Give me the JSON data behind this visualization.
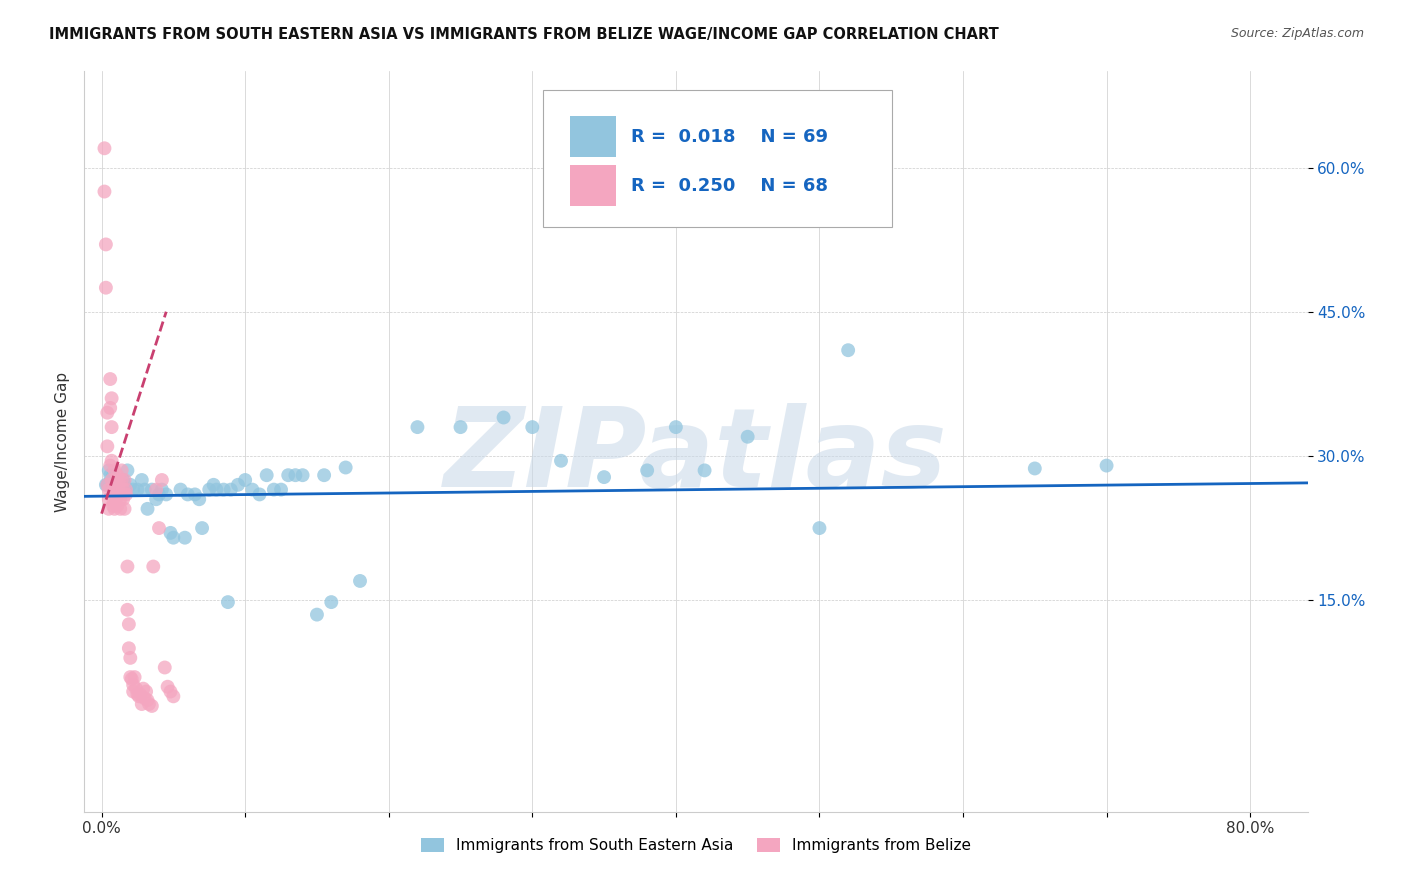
{
  "title": "IMMIGRANTS FROM SOUTH EASTERN ASIA VS IMMIGRANTS FROM BELIZE WAGE/INCOME GAP CORRELATION CHART",
  "source": "Source: ZipAtlas.com",
  "ylabel": "Wage/Income Gap",
  "legend_label1": "Immigrants from South Eastern Asia",
  "legend_label2": "Immigrants from Belize",
  "R1": 0.018,
  "N1": 69,
  "R2": 0.25,
  "N2": 68,
  "color_blue": "#92c5de",
  "color_pink": "#f4a6c0",
  "trendline_blue": "#1565c0",
  "trendline_pink": "#c94070",
  "watermark": "ZIPatlas",
  "x_ticks": [
    0.0,
    0.1,
    0.2,
    0.3,
    0.4,
    0.5,
    0.6,
    0.7,
    0.8
  ],
  "x_tick_labels": [
    "0.0%",
    "",
    "",
    "",
    "",
    "",
    "",
    "",
    "80.0%"
  ],
  "y_ticks": [
    0.15,
    0.3,
    0.45,
    0.6
  ],
  "y_tick_labels": [
    "15.0%",
    "30.0%",
    "45.0%",
    "60.0%"
  ],
  "xlim": [
    -0.012,
    0.84
  ],
  "ylim": [
    -0.07,
    0.7
  ],
  "blue_trend_x": [
    -0.012,
    0.84
  ],
  "blue_trend_y": [
    0.258,
    0.272
  ],
  "pink_trend_x": [
    0.0,
    0.045
  ],
  "pink_trend_y": [
    0.24,
    0.45
  ],
  "blue_x": [
    0.003,
    0.004,
    0.005,
    0.006,
    0.007,
    0.008,
    0.009,
    0.01,
    0.011,
    0.012,
    0.013,
    0.014,
    0.015,
    0.016,
    0.018,
    0.02,
    0.022,
    0.025,
    0.028,
    0.03,
    0.032,
    0.035,
    0.038,
    0.04,
    0.042,
    0.045,
    0.048,
    0.05,
    0.055,
    0.058,
    0.06,
    0.065,
    0.068,
    0.07,
    0.075,
    0.078,
    0.08,
    0.085,
    0.088,
    0.09,
    0.095,
    0.1,
    0.105,
    0.11,
    0.115,
    0.12,
    0.125,
    0.13,
    0.135,
    0.14,
    0.15,
    0.155,
    0.16,
    0.17,
    0.18,
    0.22,
    0.25,
    0.28,
    0.3,
    0.32,
    0.35,
    0.38,
    0.4,
    0.42,
    0.45,
    0.5,
    0.52,
    0.65,
    0.7
  ],
  "blue_y": [
    0.27,
    0.27,
    0.285,
    0.28,
    0.275,
    0.28,
    0.265,
    0.27,
    0.275,
    0.265,
    0.27,
    0.265,
    0.275,
    0.27,
    0.285,
    0.27,
    0.265,
    0.265,
    0.275,
    0.265,
    0.245,
    0.265,
    0.255,
    0.26,
    0.265,
    0.26,
    0.22,
    0.215,
    0.265,
    0.215,
    0.26,
    0.26,
    0.255,
    0.225,
    0.265,
    0.27,
    0.265,
    0.265,
    0.148,
    0.265,
    0.27,
    0.275,
    0.265,
    0.26,
    0.28,
    0.265,
    0.265,
    0.28,
    0.28,
    0.28,
    0.135,
    0.28,
    0.148,
    0.288,
    0.17,
    0.33,
    0.33,
    0.34,
    0.33,
    0.295,
    0.278,
    0.285,
    0.33,
    0.285,
    0.32,
    0.225,
    0.41,
    0.287,
    0.29
  ],
  "pink_x": [
    0.002,
    0.002,
    0.003,
    0.003,
    0.004,
    0.004,
    0.004,
    0.005,
    0.005,
    0.005,
    0.006,
    0.006,
    0.006,
    0.007,
    0.007,
    0.007,
    0.007,
    0.008,
    0.008,
    0.008,
    0.009,
    0.009,
    0.01,
    0.01,
    0.01,
    0.011,
    0.011,
    0.012,
    0.012,
    0.013,
    0.013,
    0.014,
    0.014,
    0.015,
    0.015,
    0.016,
    0.016,
    0.017,
    0.017,
    0.018,
    0.018,
    0.019,
    0.019,
    0.02,
    0.02,
    0.021,
    0.022,
    0.022,
    0.023,
    0.024,
    0.025,
    0.026,
    0.027,
    0.028,
    0.029,
    0.03,
    0.031,
    0.032,
    0.033,
    0.035,
    0.036,
    0.038,
    0.04,
    0.042,
    0.044,
    0.046,
    0.048,
    0.05
  ],
  "pink_y": [
    0.62,
    0.575,
    0.52,
    0.475,
    0.345,
    0.31,
    0.27,
    0.265,
    0.255,
    0.245,
    0.38,
    0.35,
    0.29,
    0.36,
    0.33,
    0.295,
    0.275,
    0.265,
    0.255,
    0.248,
    0.245,
    0.285,
    0.275,
    0.265,
    0.255,
    0.248,
    0.28,
    0.275,
    0.265,
    0.255,
    0.245,
    0.285,
    0.275,
    0.265,
    0.255,
    0.245,
    0.275,
    0.265,
    0.26,
    0.185,
    0.14,
    0.125,
    0.1,
    0.09,
    0.07,
    0.068,
    0.062,
    0.055,
    0.07,
    0.058,
    0.052,
    0.05,
    0.052,
    0.042,
    0.058,
    0.048,
    0.055,
    0.046,
    0.042,
    0.04,
    0.185,
    0.265,
    0.225,
    0.275,
    0.08,
    0.06,
    0.055,
    0.05
  ]
}
